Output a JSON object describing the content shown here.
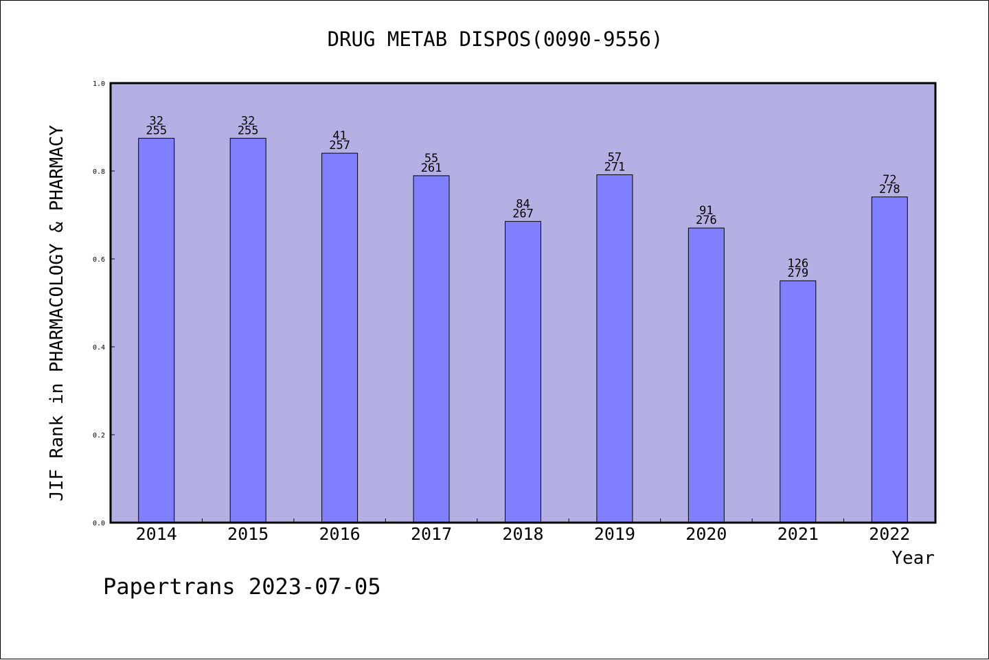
{
  "chart_data": {
    "type": "bar",
    "title": "DRUG METAB DISPOS(0090-9556)",
    "xlabel": "Year",
    "ylabel": "JIF Rank in PHARMACOLOGY & PHARMACY",
    "ylim": [
      0,
      1.0
    ],
    "yticks": [
      "0.0",
      "0.2",
      "0.4",
      "0.6",
      "0.8",
      "1.0"
    ],
    "categories": [
      "2014",
      "2015",
      "2016",
      "2017",
      "2018",
      "2019",
      "2020",
      "2021",
      "2022"
    ],
    "values": [
      0.8745,
      0.8745,
      0.8405,
      0.7893,
      0.6854,
      0.7915,
      0.6703,
      0.5502,
      0.741
    ],
    "rank": [
      "32",
      "32",
      "41",
      "55",
      "84",
      "57",
      "91",
      "126",
      "72"
    ],
    "total": [
      "255",
      "255",
      "257",
      "261",
      "267",
      "271",
      "276",
      "279",
      "278"
    ],
    "grid": false,
    "colors": {
      "plot_background": "#b5b0e3",
      "bar_fill": "#8080ff",
      "bar_stroke": "#000000"
    }
  },
  "footer": {
    "credit": "Papertrans 2023-07-05"
  }
}
